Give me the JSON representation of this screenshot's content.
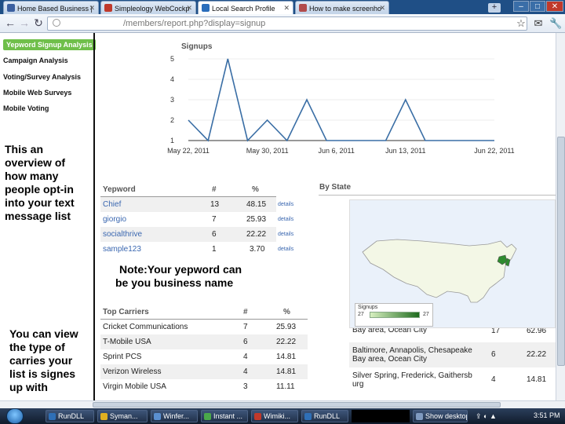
{
  "browser": {
    "tabs": [
      {
        "label": "Home Based Business |",
        "favicon": "home-favicon",
        "color": "#3b5fa0",
        "active": false
      },
      {
        "label": "Simpleology WebCockp",
        "favicon": "simpleology-favicon",
        "color": "#c0392b",
        "active": false
      },
      {
        "label": "Local Search Profile",
        "favicon": "vs-favicon",
        "color": "#2a6dbb",
        "active": true
      },
      {
        "label": "How to make screenho",
        "favicon": "page-favicon",
        "color": "#b24b4b",
        "active": false
      }
    ],
    "new_tab": "+",
    "window_controls": {
      "minimize": "–",
      "maximize": "□",
      "close": "✕"
    },
    "url": "/members/report.php?display=signup",
    "toolbar_icons": [
      "star-icon",
      "mail-icon",
      "wrench-icon"
    ]
  },
  "sidebar": {
    "items": [
      {
        "label": "Yepword Signup Analysis",
        "active": true
      },
      {
        "label": "Campaign Analysis",
        "active": false
      },
      {
        "label": "Voting/Survey Analysis",
        "active": false
      },
      {
        "label": "Mobile Web Surveys",
        "active": false
      },
      {
        "label": "Mobile Voting",
        "active": false
      }
    ],
    "note1": "This an overview of how many people opt-in into your text message list",
    "note2": "You can view the type of carries your list is signes up with"
  },
  "chart_data": {
    "type": "line",
    "title": "Signups",
    "x_tick_labels": [
      "May 22, 2011",
      "May 30, 2011",
      "Jun 6, 2011",
      "Jun 13, 2011",
      "Jun 22, 2011"
    ],
    "y_tick_labels": [
      "1",
      "2",
      "3",
      "4",
      "5"
    ],
    "ylim": [
      1,
      5
    ],
    "series": [
      {
        "color": "#3a6ea5",
        "points": [
          {
            "x": "2011-05-22",
            "y": 2
          },
          {
            "x": "2011-05-24",
            "y": 1
          },
          {
            "x": "2011-05-26",
            "y": 5
          },
          {
            "x": "2011-05-28",
            "y": 1
          },
          {
            "x": "2011-05-30",
            "y": 2
          },
          {
            "x": "2011-06-01",
            "y": 1
          },
          {
            "x": "2011-06-03",
            "y": 3
          },
          {
            "x": "2011-06-05",
            "y": 1
          },
          {
            "x": "2011-06-11",
            "y": 1
          },
          {
            "x": "2011-06-13",
            "y": 3
          },
          {
            "x": "2011-06-15",
            "y": 1
          },
          {
            "x": "2011-06-22",
            "y": 1
          }
        ]
      }
    ]
  },
  "yepword_table": {
    "headers": {
      "name": "Yepword",
      "count": "#",
      "pct": "%"
    },
    "rows": [
      {
        "name": "Chief",
        "count": "13",
        "pct": "48.15",
        "action": "details"
      },
      {
        "name": "giorgio",
        "count": "7",
        "pct": "25.93",
        "action": "details"
      },
      {
        "name": "socialthrive",
        "count": "6",
        "pct": "22.22",
        "action": "details"
      },
      {
        "name": "sample123",
        "count": "1",
        "pct": "3.70",
        "action": "details"
      }
    ]
  },
  "yepword_note": "Note:Your yepword can be you business name",
  "carriers_table": {
    "title": "Top Carriers",
    "headers": {
      "count": "#",
      "pct": "%"
    },
    "rows": [
      {
        "name": "Cricket Communications",
        "count": "7",
        "pct": "25.93"
      },
      {
        "name": "T-Mobile USA",
        "count": "6",
        "pct": "22.22"
      },
      {
        "name": "Sprint PCS",
        "count": "4",
        "pct": "14.81"
      },
      {
        "name": "Verizon Wireless",
        "count": "4",
        "pct": "14.81"
      },
      {
        "name": "Virgin Mobile USA",
        "count": "3",
        "pct": "11.11"
      }
    ]
  },
  "by_state": {
    "title": "By State",
    "legend": {
      "label": "Signups",
      "min": "27",
      "max": "27"
    },
    "rows": [
      {
        "name": "Bay area, Ocean City",
        "count": "17",
        "pct": "62.96"
      },
      {
        "name": "Baltimore, Annapolis, Chesapeake Bay area, Ocean City",
        "count": "6",
        "pct": "22.22"
      },
      {
        "name": "Silver Spring, Frederick, Gaithersb urg",
        "count": "4",
        "pct": "14.81"
      }
    ]
  },
  "taskbar": {
    "items": [
      {
        "label": "RunDLL",
        "color": "#2f6fb6"
      },
      {
        "label": "Syman...",
        "color": "#e0b020"
      },
      {
        "label": "Winfer...",
        "color": "#5a8fd0"
      },
      {
        "label": "Instant ...",
        "color": "#4aa84a"
      },
      {
        "label": "Wimiki...",
        "color": "#c0392b"
      },
      {
        "label": "RunDLL",
        "color": "#2f6fb6"
      },
      {
        "label": "Show desktop",
        "color": "#7f9ac0"
      }
    ],
    "clock": "3:51 PM"
  }
}
